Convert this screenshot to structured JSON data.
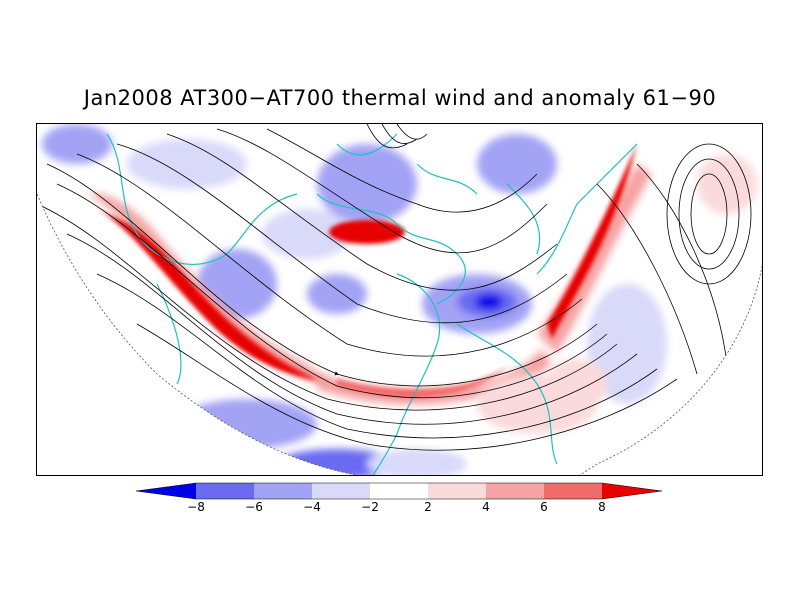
{
  "title": "Jan2008 AT300−AT700 thermal wind and anomaly 61−90",
  "colors": {
    "neg4": "#0000e6",
    "neg3": "#6b6bf2",
    "neg2": "#a3a3f5",
    "neg1": "#d9d9fa",
    "zero": "#ffffff",
    "pos1": "#fadada",
    "pos2": "#f5a3a3",
    "pos3": "#f26b6b",
    "pos4": "#e60000",
    "coast": "#20c0c0",
    "stream": "#000000"
  },
  "colorbar": {
    "tick_labels": [
      "−8",
      "−6",
      "−4",
      "−2",
      "2",
      "4",
      "6",
      "8"
    ]
  }
}
